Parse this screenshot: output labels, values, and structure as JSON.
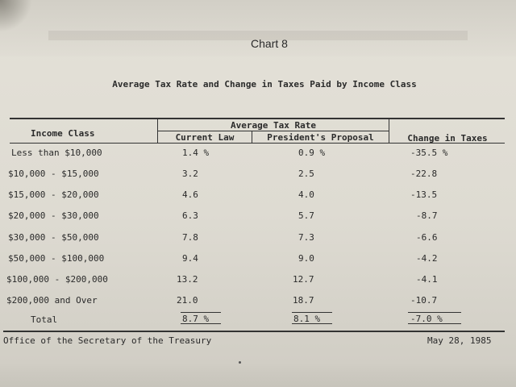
{
  "chart_title": "Chart 8",
  "subtitle": "Average Tax Rate and Change in Taxes Paid by Income Class",
  "headers": {
    "income_class": "Income Class",
    "avg_tax_rate": "Average Tax Rate",
    "current_law": "Current Law",
    "proposal": "President's Proposal",
    "change": "Change in Taxes"
  },
  "rows": [
    {
      "label": "Less than $10,000",
      "current": "1.4 %",
      "proposal": "0.9 %",
      "change": "-35.5 %"
    },
    {
      "label": "$10,000 - $15,000",
      "current": "3.2",
      "proposal": "2.5",
      "change": "-22.8"
    },
    {
      "label": "$15,000 - $20,000",
      "current": "4.6",
      "proposal": "4.0",
      "change": "-13.5"
    },
    {
      "label": "$20,000 - $30,000",
      "current": "6.3",
      "proposal": "5.7",
      "change": "-8.7"
    },
    {
      "label": "$30,000 - $50,000",
      "current": "7.8",
      "proposal": "7.3",
      "change": "-6.6"
    },
    {
      "label": "$50,000 - $100,000",
      "current": "9.4",
      "proposal": "9.0",
      "change": "-4.2"
    },
    {
      "label": "$100,000 - $200,000",
      "current": "13.2",
      "proposal": "12.7",
      "change": "-4.1"
    },
    {
      "label": "$200,000 and Over",
      "current": "21.0",
      "proposal": "18.7",
      "change": "-10.7"
    }
  ],
  "total": {
    "label": "Total",
    "current": "8.7 %",
    "proposal": "8.1 %",
    "change": "-7.0 %"
  },
  "footer": {
    "source": "Office of the Secretary of the Treasury",
    "date": "May 28, 1985"
  }
}
